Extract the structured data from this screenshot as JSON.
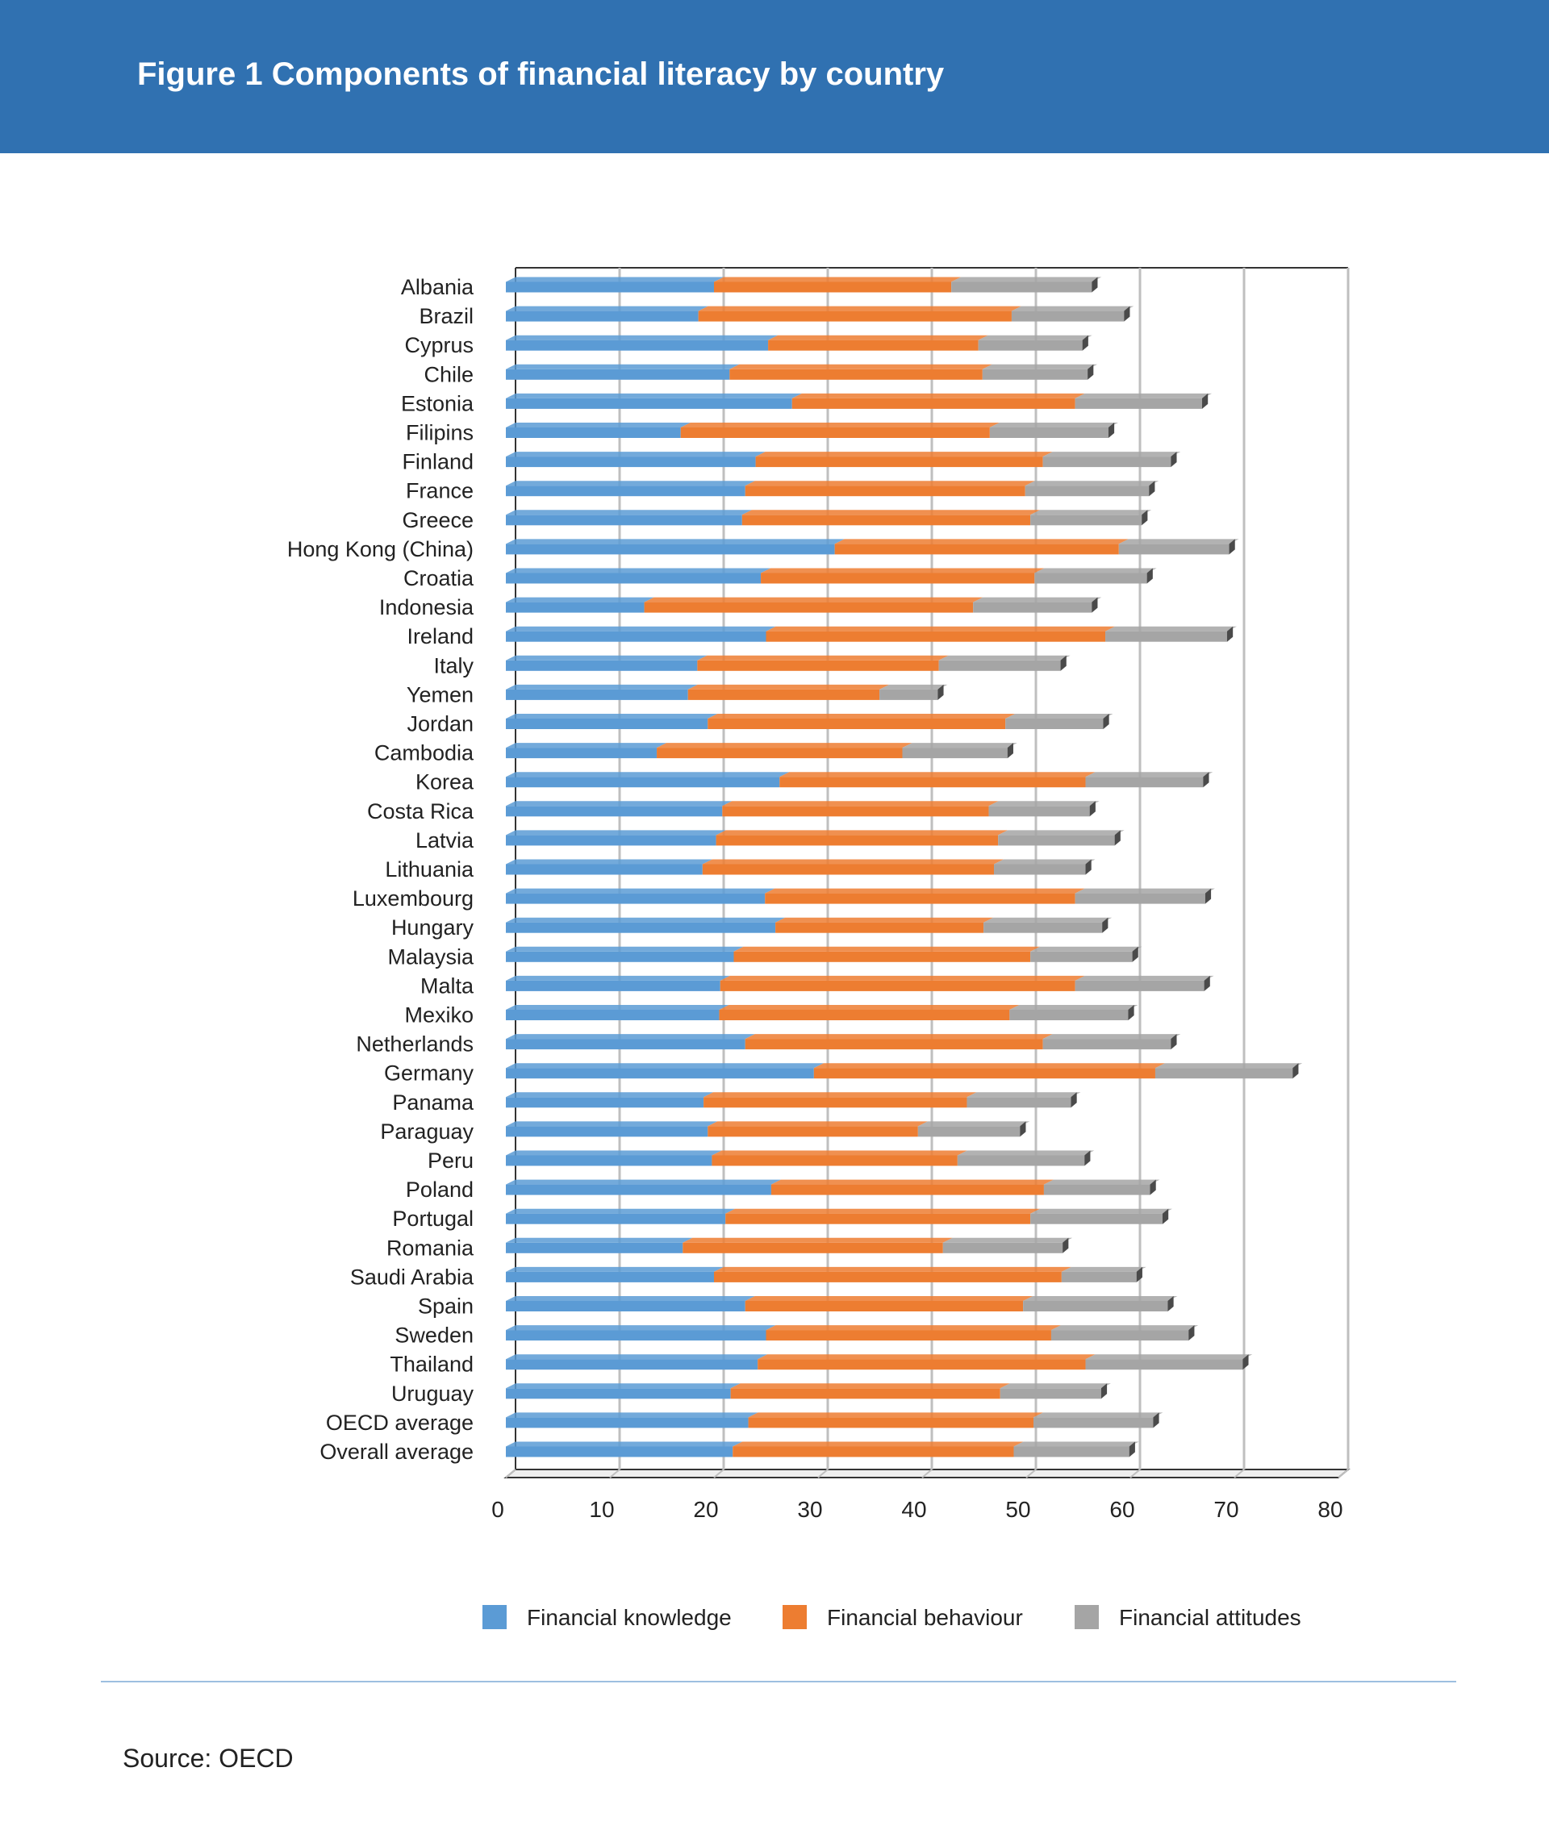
{
  "header": {
    "title": "Figure 1 Components of financial literacy by country"
  },
  "footer": {
    "source": "Source: OECD"
  },
  "colors": {
    "banner": "#3071b1",
    "knowledge": "#5b9bd5",
    "behaviour": "#ed7d31",
    "attitudes": "#a5a5a5"
  },
  "chart_data": {
    "type": "bar",
    "orientation": "horizontal",
    "stacked": true,
    "title": "Components of financial literacy by country",
    "xlabel": "",
    "ylabel": "",
    "xlim": [
      0,
      80
    ],
    "xticks": [
      0,
      10,
      20,
      30,
      40,
      50,
      60,
      70,
      80
    ],
    "grid": true,
    "legend_position": "bottom",
    "categories": [
      "Albania",
      "Brazil",
      "Cyprus",
      "Chile",
      "Estonia",
      "Filipins",
      "Finland",
      "France",
      "Greece",
      "Hong Kong (China)",
      "Croatia",
      "Indonesia",
      "Ireland",
      "Italy",
      "Yemen",
      "Jordan",
      "Cambodia",
      "Korea",
      "Costa Rica",
      "Latvia",
      "Lithuania",
      "Luxembourg",
      "Hungary",
      "Malaysia",
      "Malta",
      "Mexiko",
      "Netherlands",
      "Germany",
      "Panama",
      "Paraguay",
      "Peru",
      "Poland",
      "Portugal",
      "Romania",
      "Saudi Arabia",
      "Spain",
      "Sweden",
      "Thailand",
      "Uruguay",
      "OECD average",
      "Overall average"
    ],
    "series": [
      {
        "name": "Financial knowledge",
        "values": [
          20.0,
          18.5,
          25.2,
          21.5,
          27.5,
          16.8,
          24.0,
          23.0,
          22.7,
          31.6,
          24.5,
          13.3,
          25.0,
          18.4,
          17.5,
          19.4,
          14.5,
          26.3,
          20.8,
          20.2,
          18.9,
          24.9,
          25.9,
          21.9,
          20.6,
          20.5,
          23.0,
          29.6,
          19.0,
          19.4,
          19.8,
          25.5,
          21.1,
          17.0,
          20.0,
          23.0,
          25.0,
          24.2,
          21.6,
          23.3,
          21.8
        ],
        "color": "#5b9bd5"
      },
      {
        "name": "Financial behaviour",
        "values": [
          22.8,
          30.1,
          20.2,
          24.3,
          27.2,
          29.7,
          27.6,
          26.9,
          27.7,
          27.3,
          26.3,
          31.6,
          32.6,
          23.2,
          18.4,
          28.6,
          23.6,
          29.4,
          25.6,
          27.1,
          28.0,
          29.8,
          20.0,
          28.5,
          34.1,
          27.9,
          28.6,
          32.8,
          25.3,
          20.2,
          23.6,
          26.2,
          29.3,
          25.0,
          33.4,
          26.7,
          27.4,
          31.5,
          25.9,
          27.4,
          27.0
        ],
        "color": "#ed7d31"
      },
      {
        "name": "Financial attitudes",
        "values": [
          13.5,
          10.8,
          10.0,
          10.1,
          12.2,
          11.4,
          12.3,
          11.9,
          10.7,
          10.6,
          10.8,
          11.4,
          11.7,
          11.7,
          5.6,
          9.4,
          10.1,
          11.3,
          9.7,
          11.2,
          8.8,
          12.5,
          11.4,
          9.8,
          12.4,
          11.4,
          12.3,
          13.2,
          10.0,
          9.8,
          12.2,
          10.2,
          12.7,
          11.5,
          7.2,
          13.9,
          13.2,
          15.1,
          9.7,
          11.5,
          11.1
        ],
        "color": "#a5a5a5"
      }
    ]
  }
}
